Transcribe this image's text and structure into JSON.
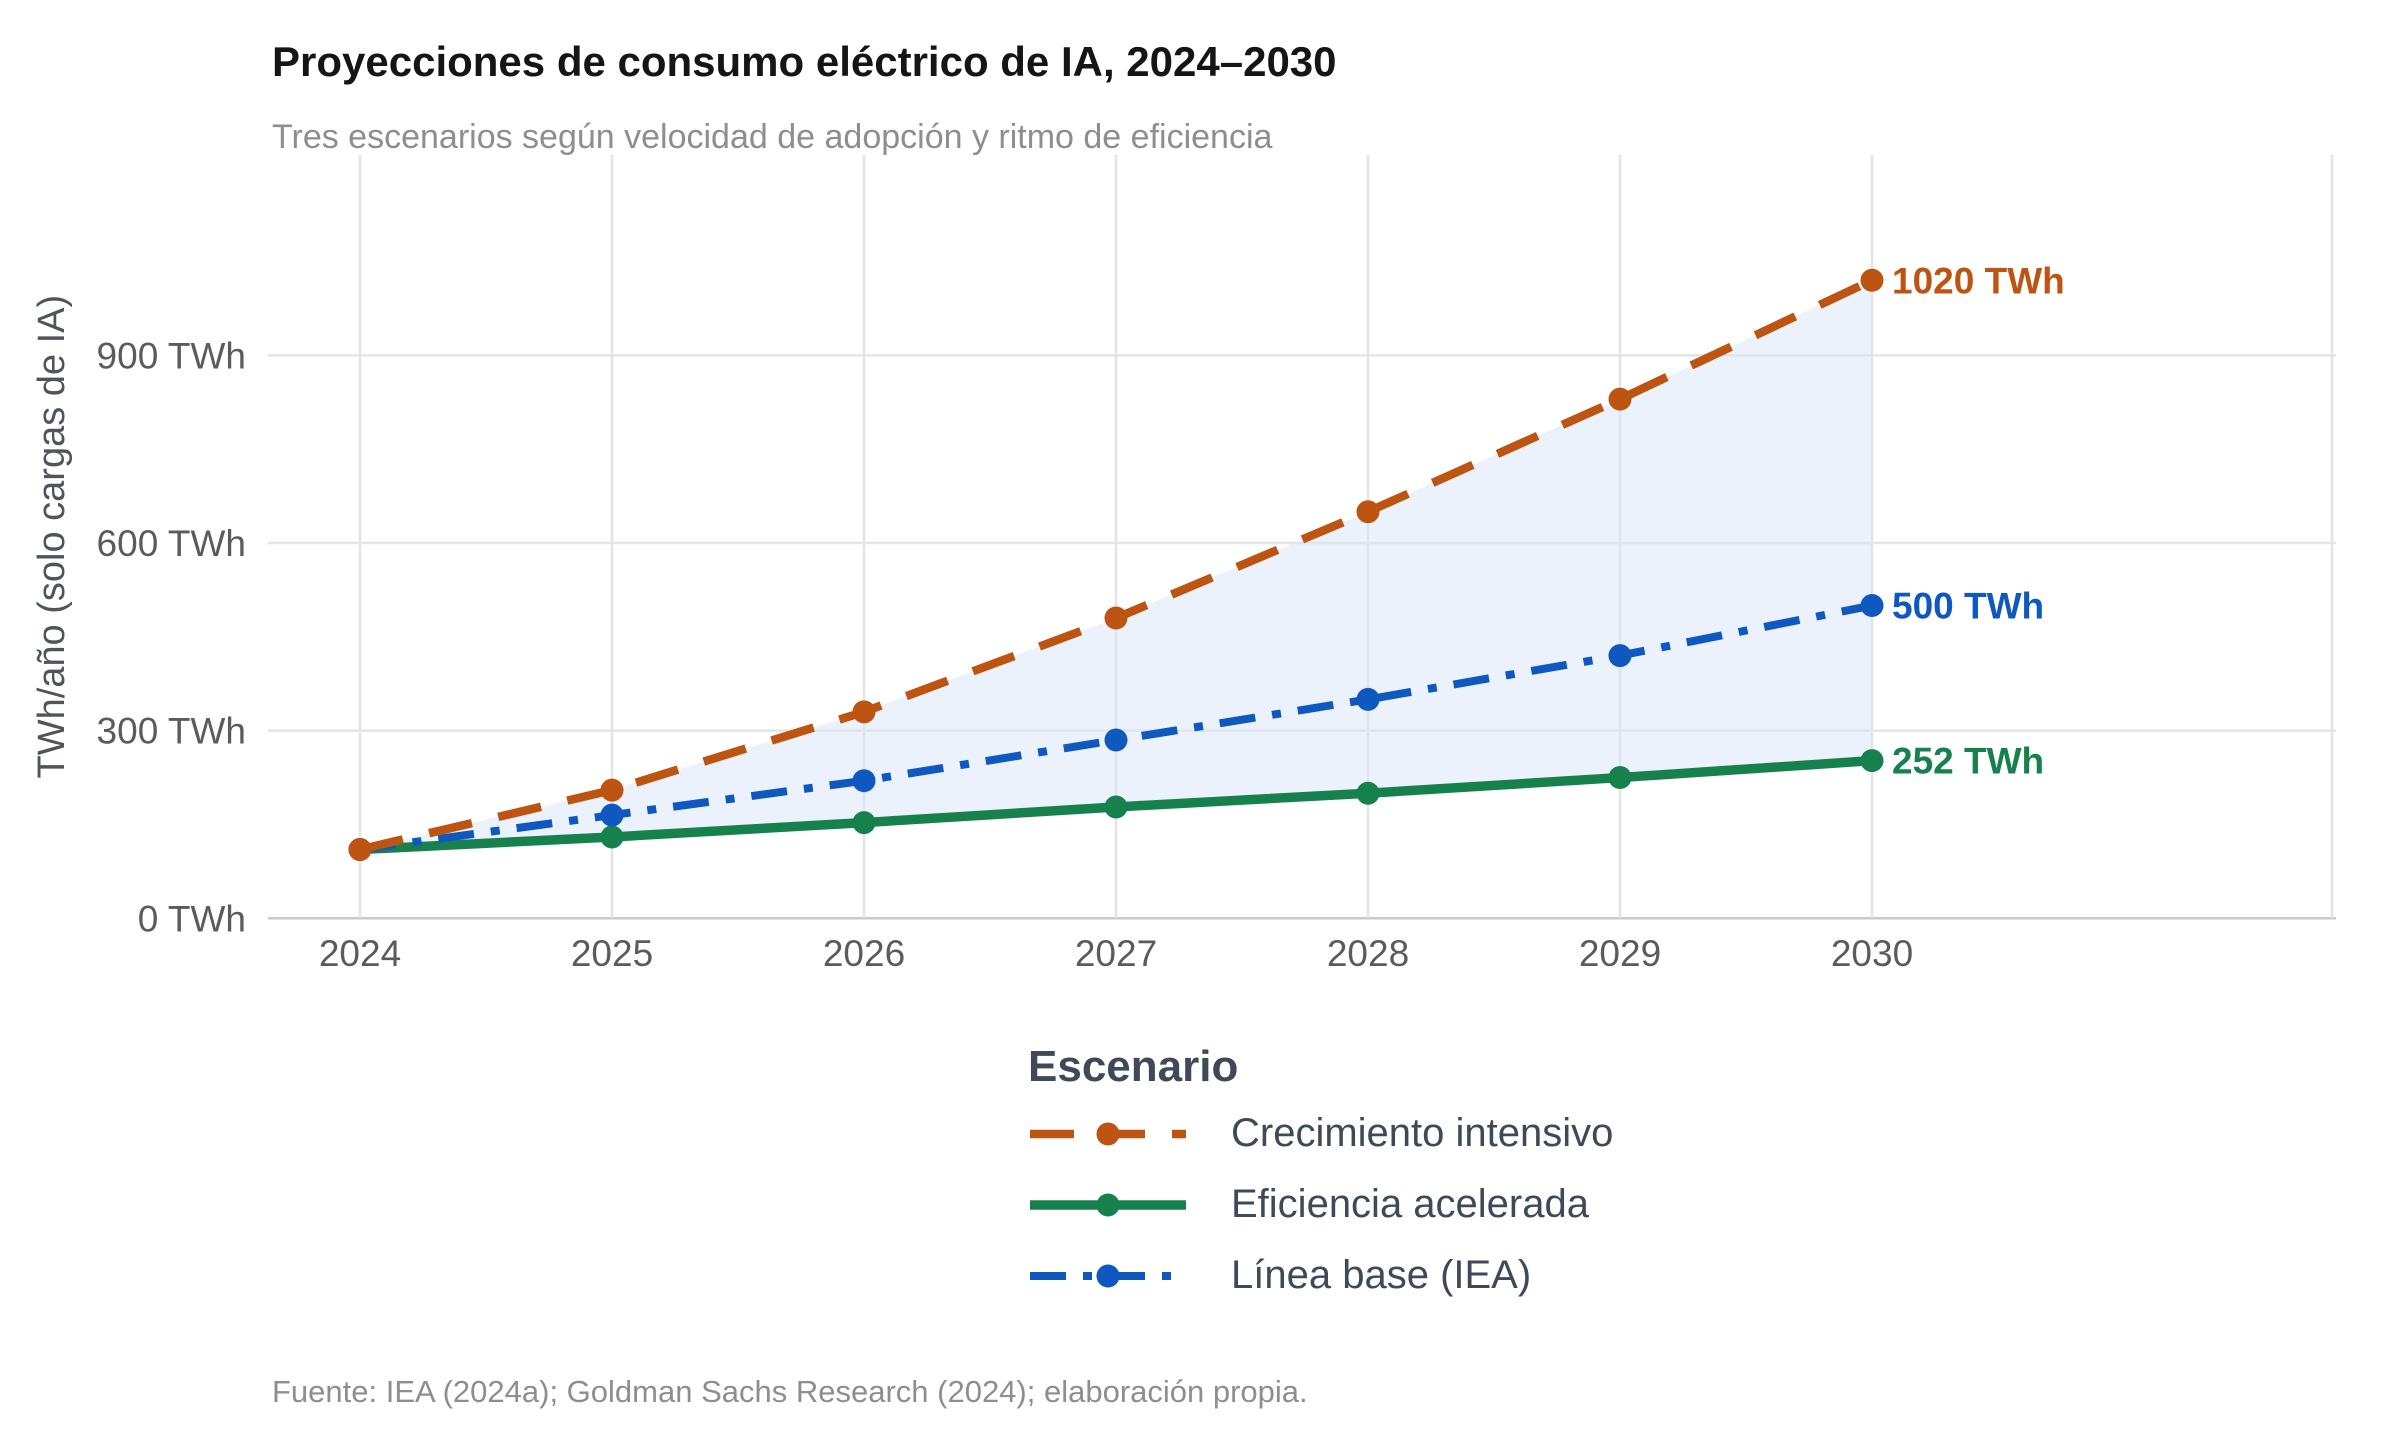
{
  "title": "Proyecciones de consumo eléctrico de IA, 2024–2030",
  "subtitle": "Tres escenarios según velocidad de adopción y ritmo de eficiencia",
  "source": "Fuente: IEA (2024a); Goldman Sachs Research (2024); elaboración propia.",
  "colors": {
    "orange": "#bd5411",
    "green": "#17814d",
    "blue": "#0f58c0",
    "ribbon_fill": "#d7e5f8",
    "grid": "#e4e4e4",
    "axis_line": "#c9c9c9",
    "axis_text": "#5b5b5b",
    "axis_title": "#50555b",
    "legend_text": "#3e4a57",
    "title_text": "#151515",
    "muted_text": "#8e8e8e"
  },
  "chart_data": {
    "type": "line",
    "title": "Proyecciones de consumo eléctrico de IA, 2024–2030",
    "subtitle": "Tres escenarios según velocidad de adopción y ritmo de eficiencia",
    "x": [
      2024,
      2025,
      2026,
      2027,
      2028,
      2029,
      2030
    ],
    "xlabel": "",
    "ylabel": "TWh/año (solo cargas de IA)",
    "ylim": [
      0,
      1200
    ],
    "yticks": [
      {
        "value": 0,
        "label": "0 TWh"
      },
      {
        "value": 300,
        "label": "300 TWh"
      },
      {
        "value": 600,
        "label": "600 TWh"
      },
      {
        "value": 900,
        "label": "900 TWh"
      }
    ],
    "grid": true,
    "legend_title": "Escenario",
    "legend_position": "bottom",
    "series": [
      {
        "name": "Crecimiento intensivo",
        "color": "#bd5411",
        "line_style": "dashed",
        "values": [
          110,
          205,
          330,
          480,
          650,
          830,
          1020
        ],
        "end_label": "1020 TWh"
      },
      {
        "name": "Eficiencia acelerada",
        "color": "#17814d",
        "line_style": "solid",
        "values": [
          110,
          130,
          153,
          178,
          200,
          225,
          252
        ],
        "end_label": "252 TWh"
      },
      {
        "name": "Línea base (IEA)",
        "color": "#0f58c0",
        "line_style": "twodash",
        "values": [
          110,
          165,
          220,
          285,
          350,
          420,
          500
        ],
        "end_label": "500 TWh"
      }
    ],
    "ribbon": {
      "between": [
        "Eficiencia acelerada",
        "Crecimiento intensivo"
      ],
      "color": "#d7e5f8",
      "opacity": 0.5
    }
  }
}
